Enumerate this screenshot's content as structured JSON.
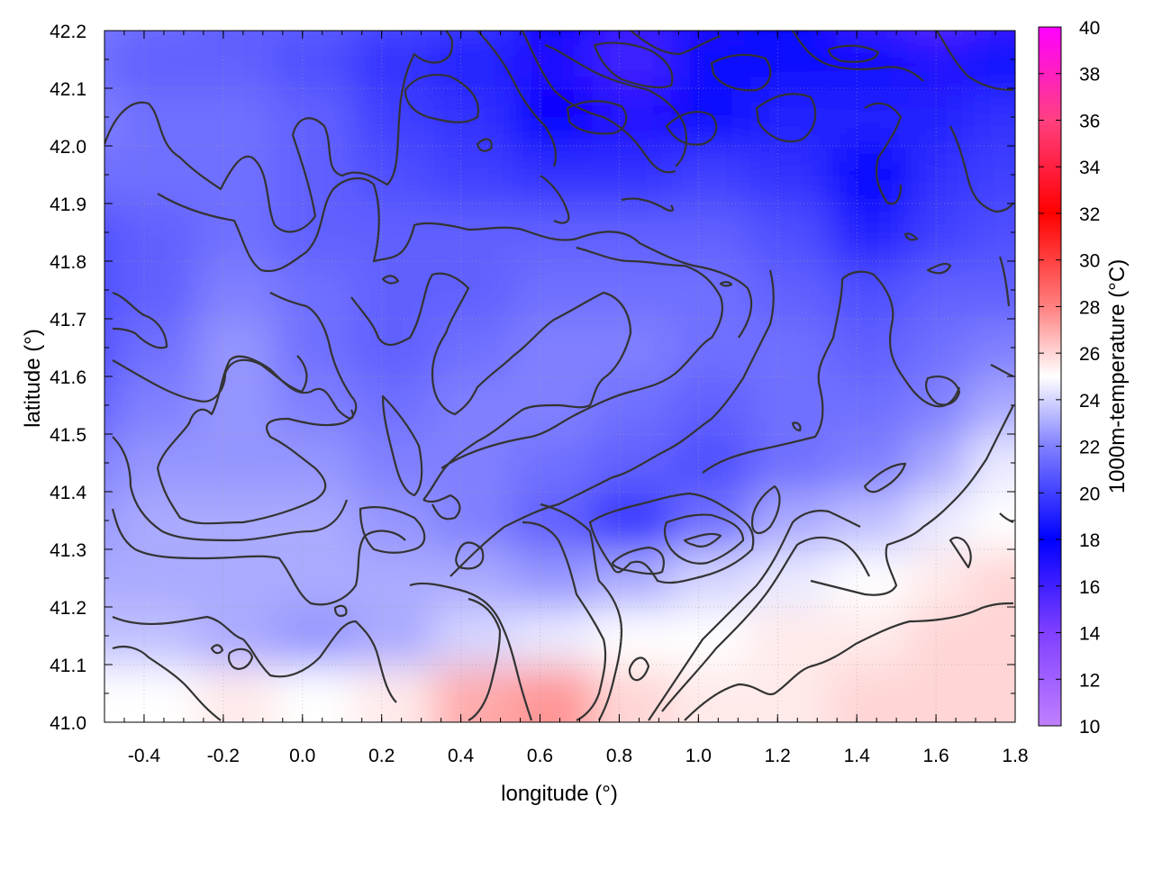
{
  "chart_data": {
    "type": "heatmap",
    "xlabel": "longitude (°)",
    "ylabel": "latitude (°)",
    "colorbar_label": "1000m-temperature (°C)",
    "xlim": [
      -0.5,
      1.8
    ],
    "ylim": [
      41.0,
      42.2
    ],
    "zlim": [
      10,
      40
    ],
    "x_ticks": [
      -0.4,
      -0.2,
      0.0,
      0.2,
      0.4,
      0.6,
      0.8,
      1.0,
      1.2,
      1.4,
      1.6,
      1.8
    ],
    "x_tick_labels": [
      "-0.4",
      "-0.2",
      "0.0",
      "0.2",
      "0.4",
      "0.6",
      "0.8",
      "1.0",
      "1.2",
      "1.4",
      "1.6",
      "1.8"
    ],
    "y_ticks": [
      41.0,
      41.1,
      41.2,
      41.3,
      41.4,
      41.5,
      41.6,
      41.7,
      41.8,
      41.9,
      42.0,
      42.1,
      42.2
    ],
    "y_tick_labels": [
      "41.0",
      "41.1",
      "41.2",
      "41.3",
      "41.4",
      "41.5",
      "41.6",
      "41.7",
      "41.8",
      "41.9",
      "42.0",
      "42.1",
      "42.2"
    ],
    "colorbar_ticks": [
      10,
      12,
      14,
      16,
      18,
      20,
      22,
      24,
      26,
      28,
      30,
      32,
      34,
      36,
      38,
      40
    ],
    "colorbar_tick_labels": [
      "10",
      "12",
      "14",
      "16",
      "18",
      "20",
      "22",
      "24",
      "26",
      "28",
      "30",
      "32",
      "34",
      "36",
      "38",
      "40"
    ],
    "colormap": [
      {
        "value": 10,
        "color": "#c080ff"
      },
      {
        "value": 14,
        "color": "#8040ff"
      },
      {
        "value": 18,
        "color": "#0000ff"
      },
      {
        "value": 22,
        "color": "#8080ff"
      },
      {
        "value": 25,
        "color": "#ffffff"
      },
      {
        "value": 28,
        "color": "#ff8080"
      },
      {
        "value": 32,
        "color": "#ff0000"
      },
      {
        "value": 36,
        "color": "#ff4080"
      },
      {
        "value": 40,
        "color": "#ff00ff"
      }
    ],
    "grid": true,
    "field_lon": [
      -0.5,
      -0.3,
      -0.1,
      0.1,
      0.3,
      0.5,
      0.7,
      0.9,
      1.1,
      1.3,
      1.5,
      1.7,
      1.8
    ],
    "field_lat": [
      42.2,
      42.1,
      42.0,
      41.9,
      41.8,
      41.7,
      41.6,
      41.5,
      41.4,
      41.3,
      41.2,
      41.1,
      41.0
    ],
    "field_values": [
      [
        22.0,
        21.5,
        21.0,
        21.0,
        20.5,
        20.0,
        18.0,
        16.5,
        17.0,
        18.0,
        16.0,
        15.0,
        16.0
      ],
      [
        21.5,
        21.0,
        21.0,
        20.5,
        19.5,
        19.0,
        17.0,
        16.0,
        17.5,
        18.5,
        17.5,
        17.0,
        17.5
      ],
      [
        22.0,
        21.5,
        21.5,
        21.0,
        20.0,
        19.5,
        18.0,
        17.0,
        18.5,
        19.0,
        19.0,
        19.0,
        19.5
      ],
      [
        21.5,
        21.5,
        21.5,
        21.0,
        20.5,
        20.0,
        19.5,
        19.5,
        20.0,
        19.5,
        18.0,
        19.5,
        20.0
      ],
      [
        20.5,
        21.0,
        21.5,
        21.0,
        21.0,
        21.0,
        21.0,
        21.0,
        21.0,
        20.5,
        19.0,
        20.0,
        20.5
      ],
      [
        20.5,
        21.0,
        22.0,
        21.5,
        21.0,
        21.0,
        21.5,
        21.5,
        21.5,
        21.0,
        20.5,
        21.0,
        21.0
      ],
      [
        20.5,
        21.5,
        22.5,
        21.5,
        21.0,
        21.5,
        22.0,
        22.0,
        21.5,
        21.5,
        21.0,
        21.5,
        22.0
      ],
      [
        21.0,
        22.0,
        22.5,
        22.0,
        21.5,
        22.0,
        22.0,
        21.5,
        21.0,
        21.5,
        21.5,
        22.0,
        23.0
      ],
      [
        22.0,
        22.5,
        22.5,
        22.5,
        22.0,
        22.0,
        21.5,
        21.0,
        20.5,
        21.5,
        22.0,
        23.0,
        24.5
      ],
      [
        22.5,
        23.0,
        23.0,
        23.0,
        22.5,
        22.0,
        21.0,
        19.5,
        21.5,
        23.0,
        23.5,
        24.5,
        25.0
      ],
      [
        23.0,
        23.0,
        23.0,
        23.0,
        23.0,
        23.0,
        22.5,
        23.0,
        24.0,
        24.5,
        25.0,
        25.5,
        26.0
      ],
      [
        23.5,
        23.5,
        23.0,
        22.5,
        23.0,
        24.0,
        24.5,
        25.0,
        25.0,
        25.5,
        25.5,
        26.0,
        26.0
      ],
      [
        25.0,
        25.0,
        25.5,
        25.0,
        25.5,
        27.0,
        27.5,
        26.0,
        25.5,
        25.5,
        26.0,
        26.0,
        26.0
      ]
    ]
  }
}
